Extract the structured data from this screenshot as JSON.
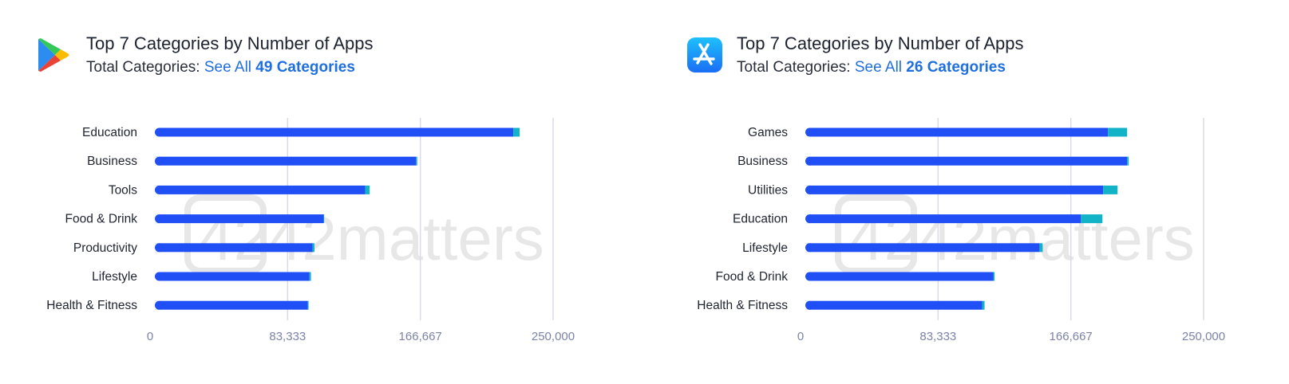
{
  "panels": [
    {
      "store": "Google Play",
      "logo_icon": "google-play-icon",
      "title": "Top 7 Categories by Number of Apps",
      "subtitle_prefix": "Total Categories:",
      "see_all": "See All",
      "categories_count": "49 Categories",
      "watermark_text": "42matters"
    },
    {
      "store": "App Store",
      "logo_icon": "app-store-icon",
      "title": "Top 7 Categories by Number of Apps",
      "subtitle_prefix": "Total Categories:",
      "see_all": "See All",
      "categories_count": "26 Categories",
      "watermark_text": "42matters"
    }
  ],
  "colors": {
    "primary_bar": "#1f4ff5",
    "secondary_bar": "#12b3c7",
    "grid": "#d9dce8",
    "tick": "#7b83a8",
    "label": "#1f2430",
    "link": "#1f6fe0"
  },
  "chart_data": [
    {
      "type": "bar",
      "orientation": "horizontal",
      "stacked": true,
      "categories": [
        "Education",
        "Business",
        "Tools",
        "Food & Drink",
        "Productivity",
        "Lifestyle",
        "Health & Fitness"
      ],
      "series": [
        {
          "values": [
            225000,
            164000,
            132000,
            106000,
            99000,
            97000,
            96000
          ]
        },
        {
          "values": [
            4000,
            700,
            2800,
            300,
            1200,
            1000,
            500
          ]
        }
      ],
      "xlim": [
        0,
        250000
      ],
      "xticks": [
        "0",
        "83,333",
        "166,667",
        "250,000"
      ],
      "grid": true
    },
    {
      "type": "bar",
      "orientation": "horizontal",
      "stacked": true,
      "categories": [
        "Games",
        "Business",
        "Utilities",
        "Education",
        "Lifestyle",
        "Food & Drink",
        "Health & Fitness"
      ],
      "series": [
        {
          "values": [
            190000,
            202000,
            187000,
            173000,
            147000,
            118000,
            111000
          ]
        },
        {
          "values": [
            12000,
            1000,
            9000,
            13500,
            2000,
            800,
            1500
          ]
        }
      ],
      "xlim": [
        0,
        250000
      ],
      "xticks": [
        "0",
        "83,333",
        "166,667",
        "250,000"
      ],
      "grid": true
    }
  ]
}
